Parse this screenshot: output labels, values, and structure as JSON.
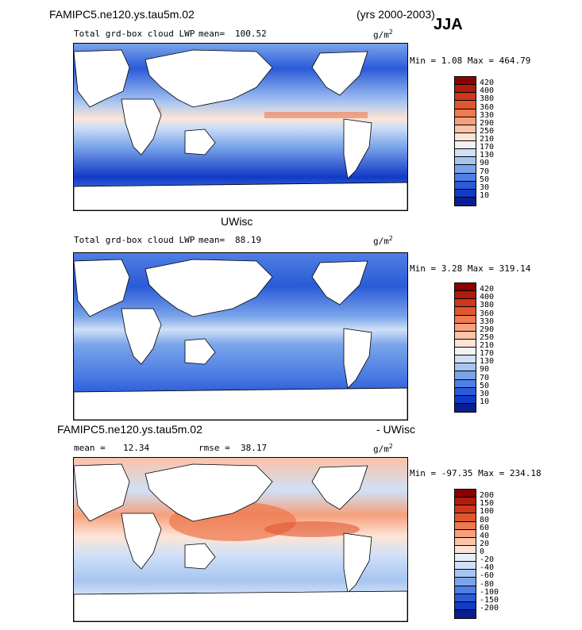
{
  "header": {
    "case_name": "FAMIPC5.ne120.ys.tau5m.02",
    "years": "(yrs 2000-2003)",
    "season": "JJA"
  },
  "panels": [
    {
      "title": "",
      "field": "Total grd-box cloud LWP",
      "mean_label": "mean=",
      "mean": "100.52",
      "units_base": "g/m",
      "units_exp": "2",
      "minmax": "Min =   1.08 Max = 464.79"
    },
    {
      "title": "UWisc",
      "field": "Total grd-box cloud LWP",
      "mean_label": "mean=",
      "mean": "88.19",
      "units_base": "g/m",
      "units_exp": "2",
      "minmax": "Min =   3.28 Max = 319.14"
    },
    {
      "title_left": "FAMIPC5.ne120.ys.tau5m.02",
      "title_right": "- UWisc",
      "mean_label": "mean =",
      "mean": "12.34",
      "rmse_label": "rmse =",
      "rmse": "38.17",
      "units_base": "g/m",
      "units_exp": "2",
      "minmax": "Min = -97.35 Max = 234.18"
    }
  ],
  "chart_data": [
    {
      "type": "heatmap",
      "description_title": "",
      "colorbar_levels": [
        420,
        400,
        380,
        360,
        330,
        290,
        250,
        210,
        170,
        130,
        90,
        70,
        50,
        30,
        10
      ],
      "colorbar_colors": [
        "#8b0000",
        "#b21a0a",
        "#d0361c",
        "#e0562e",
        "#ee7a4f",
        "#f6a07c",
        "#fbc3a8",
        "#fde5d6",
        "#f2f2f2",
        "#cfe0f7",
        "#a7c5f1",
        "#7aa4ea",
        "#4f7fe3",
        "#2a5bd8",
        "#113ac6",
        "#0a1f8f"
      ],
      "min": 1.08,
      "max": 464.79,
      "mean": 100.52
    },
    {
      "type": "heatmap",
      "colorbar_levels": [
        420,
        400,
        380,
        360,
        330,
        290,
        250,
        210,
        170,
        130,
        90,
        70,
        50,
        30,
        10
      ],
      "colorbar_colors": [
        "#8b0000",
        "#b21a0a",
        "#d0361c",
        "#e0562e",
        "#ee7a4f",
        "#f6a07c",
        "#fbc3a8",
        "#fde5d6",
        "#f2f2f2",
        "#cfe0f7",
        "#a7c5f1",
        "#7aa4ea",
        "#4f7fe3",
        "#2a5bd8",
        "#113ac6",
        "#0a1f8f"
      ],
      "min": 3.28,
      "max": 319.14,
      "mean": 88.19
    },
    {
      "type": "heatmap",
      "colorbar_levels": [
        200,
        150,
        100,
        80,
        60,
        40,
        20,
        0,
        -20,
        -40,
        -60,
        -80,
        -100,
        -150,
        -200
      ],
      "colorbar_colors": [
        "#8b0000",
        "#b21a0a",
        "#d0361c",
        "#e0562e",
        "#ee7a4f",
        "#f6a07c",
        "#fbc3a8",
        "#fde5d6",
        "#e6eefa",
        "#cfe0f7",
        "#a7c5f1",
        "#7aa4ea",
        "#4f7fe3",
        "#2a5bd8",
        "#113ac6",
        "#0a1f8f"
      ],
      "min": -97.35,
      "max": 234.18,
      "mean": 12.34,
      "rmse": 38.17
    }
  ],
  "colors": {
    "ocean_low": "#2a5bd8",
    "ocean_mid": "#7aa4ea",
    "ocean_high": "#d0361c",
    "land": "#ffffff"
  }
}
